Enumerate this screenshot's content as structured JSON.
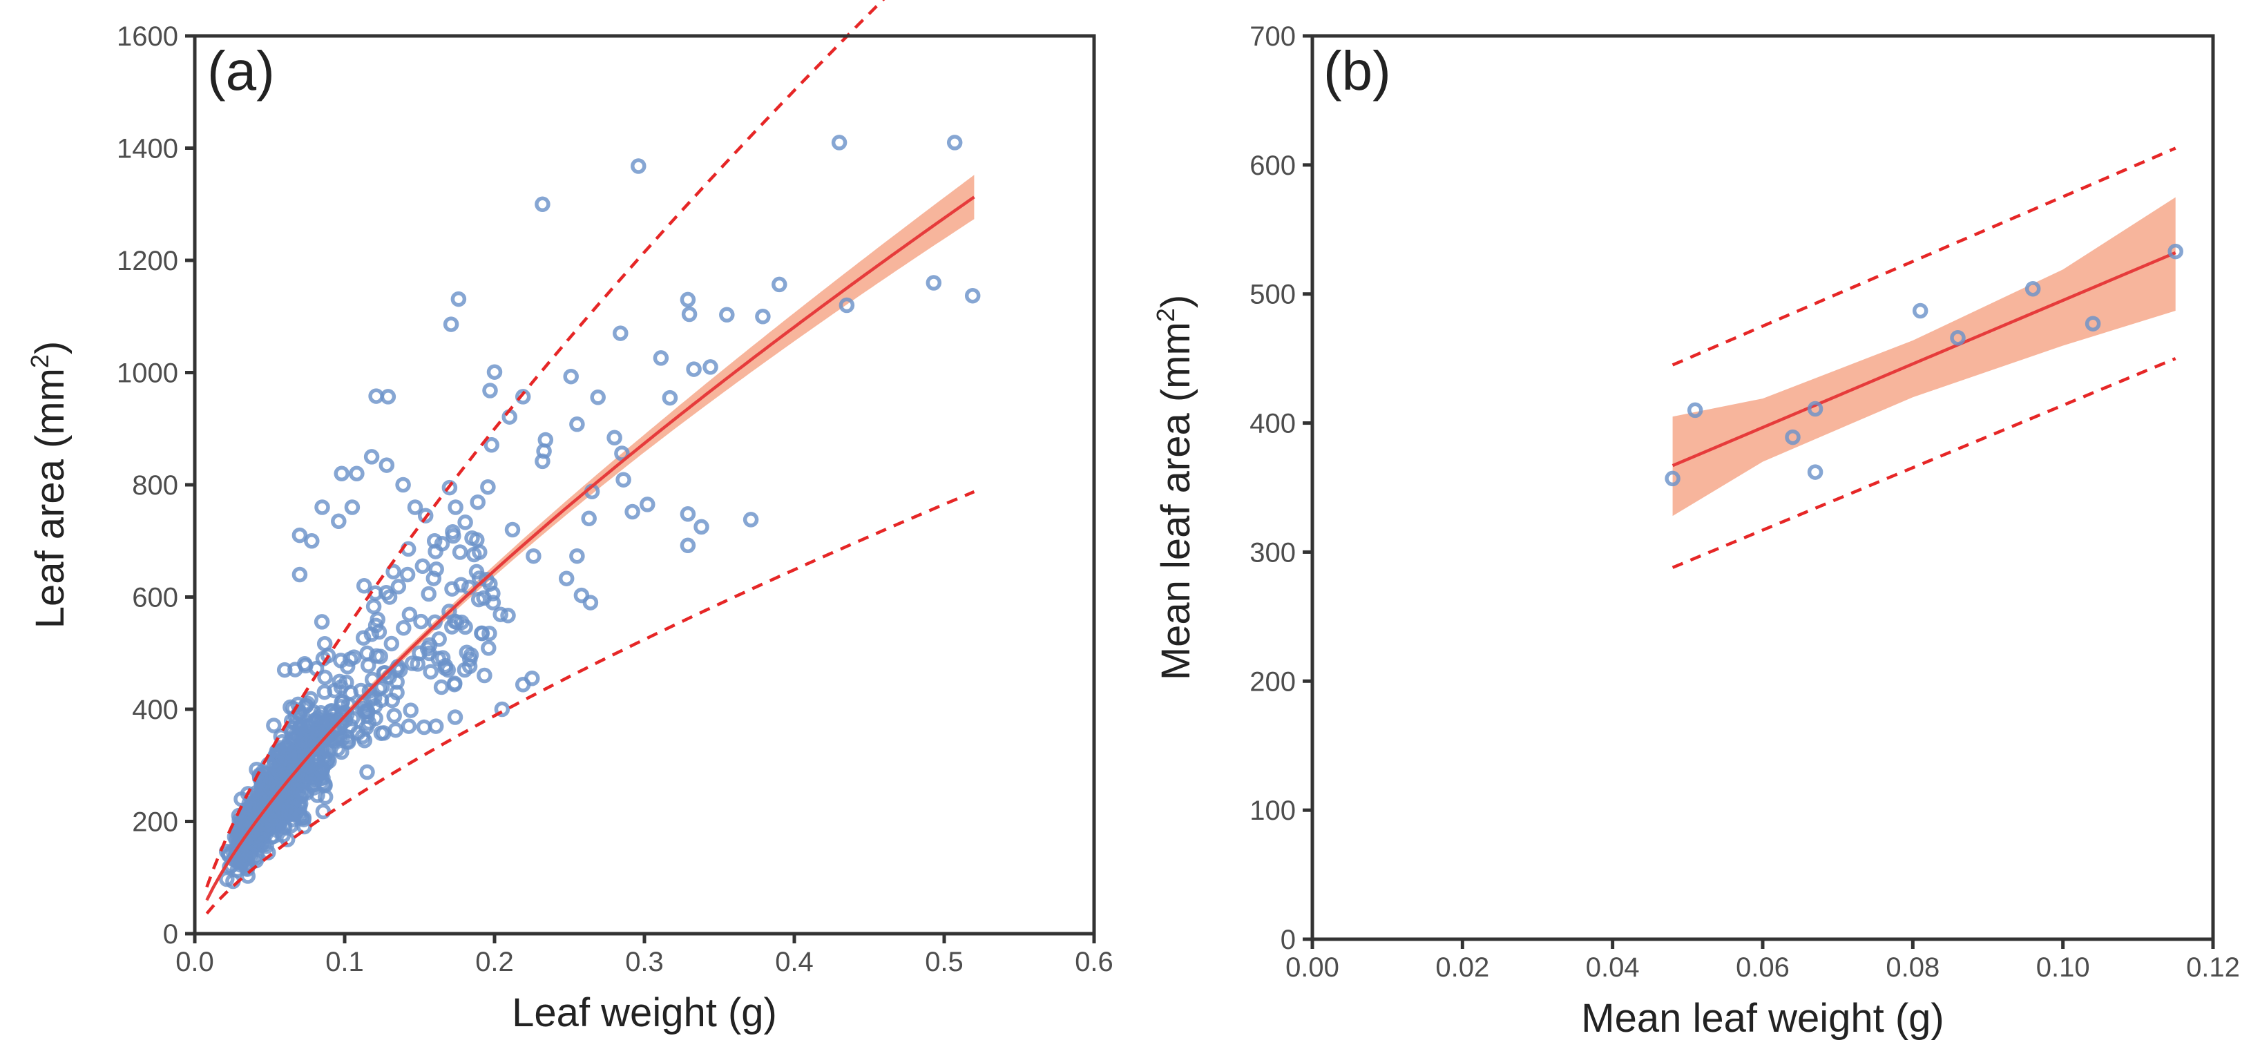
{
  "chart_data": [
    {
      "panel": "(a)",
      "type": "scatter",
      "xlabel": "Leaf weight (g)",
      "ylabel": "Leaf area (mm²)",
      "ylabel_main": "Leaf area (mm",
      "ylabel_sup": "2",
      "ylabel_end": ")",
      "xlim": [
        0.0,
        0.6
      ],
      "ylim": [
        0,
        1600
      ],
      "xticks": [
        0.0,
        0.1,
        0.2,
        0.3,
        0.4,
        0.5,
        0.6
      ],
      "xtick_labels": [
        "0.0",
        "0.1",
        "0.2",
        "0.3",
        "0.4",
        "0.5",
        "0.6"
      ],
      "yticks": [
        0,
        200,
        400,
        600,
        800,
        1000,
        1200,
        1400,
        1600
      ],
      "ytick_labels": [
        "0",
        "200",
        "400",
        "600",
        "800",
        "1000",
        "1200",
        "1400",
        "1600"
      ],
      "fit": {
        "model": "power",
        "a": 2130,
        "b": 0.74,
        "x_range": [
          0.008,
          0.52
        ]
      },
      "prediction_factor": [
        0.6,
        1.39
      ],
      "confidence_half_width_fraction": [
        0.06,
        0.025,
        0.014,
        0.018,
        0.03
      ],
      "confidence_fraction_at_x": [
        0.008,
        0.05,
        0.15,
        0.3,
        0.52
      ],
      "outliers": [
        [
          0.43,
          1410
        ],
        [
          0.507,
          1410
        ],
        [
          0.296,
          1368
        ],
        [
          0.232,
          1300
        ],
        [
          0.493,
          1160
        ],
        [
          0.519,
          1137
        ],
        [
          0.39,
          1157
        ],
        [
          0.435,
          1120
        ],
        [
          0.379,
          1100
        ],
        [
          0.355,
          1103
        ],
        [
          0.329,
          1130
        ],
        [
          0.33,
          1104
        ],
        [
          0.176,
          1131
        ],
        [
          0.171,
          1086
        ],
        [
          0.311,
          1026
        ],
        [
          0.333,
          1006
        ],
        [
          0.344,
          1010
        ],
        [
          0.317,
          955
        ],
        [
          0.284,
          1070
        ],
        [
          0.251,
          993
        ],
        [
          0.219,
          957
        ],
        [
          0.129,
          957
        ],
        [
          0.121,
          958
        ],
        [
          0.2,
          1001
        ],
        [
          0.197,
          968
        ],
        [
          0.21,
          921
        ],
        [
          0.234,
          880
        ],
        [
          0.233,
          860
        ],
        [
          0.232,
          842
        ],
        [
          0.255,
          908
        ],
        [
          0.269,
          956
        ],
        [
          0.28,
          884
        ],
        [
          0.285,
          856
        ],
        [
          0.286,
          809
        ],
        [
          0.265,
          788
        ],
        [
          0.263,
          740
        ],
        [
          0.292,
          752
        ],
        [
          0.302,
          765
        ],
        [
          0.329,
          748
        ],
        [
          0.338,
          725
        ],
        [
          0.329,
          692
        ],
        [
          0.371,
          738
        ],
        [
          0.226,
          673
        ],
        [
          0.255,
          673
        ],
        [
          0.258,
          603
        ],
        [
          0.264,
          590
        ],
        [
          0.248,
          633
        ],
        [
          0.225,
          455
        ],
        [
          0.205,
          400
        ],
        [
          0.219,
          444
        ],
        [
          0.196,
          509
        ],
        [
          0.204,
          569
        ],
        [
          0.209,
          567
        ],
        [
          0.153,
          368
        ],
        [
          0.134,
          363
        ],
        [
          0.115,
          288
        ],
        [
          0.1,
          394
        ],
        [
          0.082,
          330
        ],
        [
          0.169,
          470
        ],
        [
          0.183,
          617
        ],
        [
          0.185,
          705
        ],
        [
          0.19,
          680
        ],
        [
          0.199,
          590
        ],
        [
          0.212,
          720
        ],
        [
          0.17,
          795
        ],
        [
          0.174,
          760
        ],
        [
          0.16,
          700
        ],
        [
          0.152,
          655
        ],
        [
          0.142,
          640
        ],
        [
          0.13,
          600
        ],
        [
          0.122,
          560
        ],
        [
          0.113,
          620
        ],
        [
          0.105,
          760
        ],
        [
          0.096,
          735
        ],
        [
          0.098,
          820
        ],
        [
          0.108,
          820
        ],
        [
          0.118,
          850
        ],
        [
          0.128,
          835
        ],
        [
          0.139,
          800
        ],
        [
          0.147,
          760
        ],
        [
          0.154,
          745
        ],
        [
          0.165,
          695
        ],
        [
          0.177,
          680
        ],
        [
          0.188,
          645
        ],
        [
          0.178,
          555
        ],
        [
          0.163,
          525
        ],
        [
          0.15,
          500
        ],
        [
          0.137,
          470
        ],
        [
          0.125,
          440
        ],
        [
          0.112,
          410
        ],
        [
          0.088,
          350
        ],
        [
          0.075,
          310
        ],
        [
          0.066,
          290
        ],
        [
          0.056,
          260
        ],
        [
          0.046,
          225
        ],
        [
          0.06,
          470
        ],
        [
          0.07,
          640
        ],
        [
          0.078,
          700
        ],
        [
          0.085,
          760
        ],
        [
          0.07,
          710
        ]
      ],
      "core_cloud": {
        "count": 850,
        "x_range": [
          0.008,
          0.2
        ],
        "scatter_sd_log": 0.17
      }
    },
    {
      "panel": "(b)",
      "type": "scatter",
      "xlabel": "Mean leaf weight (g)",
      "ylabel": "Mean leaf area (mm²)",
      "ylabel_main": "Mean leaf area (mm",
      "ylabel_sup": "2",
      "ylabel_end": ")",
      "xlim": [
        0.0,
        0.12
      ],
      "ylim": [
        0,
        700
      ],
      "xticks": [
        0.0,
        0.02,
        0.04,
        0.06,
        0.08,
        0.1,
        0.12
      ],
      "xtick_labels": [
        "0.00",
        "0.02",
        "0.04",
        "0.06",
        "0.08",
        "0.10",
        "0.12"
      ],
      "yticks": [
        0,
        100,
        200,
        300,
        400,
        500,
        600,
        700
      ],
      "ytick_labels": [
        "0",
        "100",
        "200",
        "300",
        "400",
        "500",
        "600",
        "700"
      ],
      "points": [
        [
          0.048,
          357
        ],
        [
          0.051,
          410
        ],
        [
          0.064,
          389
        ],
        [
          0.067,
          411
        ],
        [
          0.067,
          362
        ],
        [
          0.081,
          487
        ],
        [
          0.086,
          466
        ],
        [
          0.096,
          504
        ],
        [
          0.104,
          477
        ],
        [
          0.115,
          533
        ]
      ],
      "fit": {
        "model": "linear",
        "x": [
          0.048,
          0.115
        ],
        "y": [
          367,
          532
        ]
      },
      "prediction_upper": {
        "x": [
          0.048,
          0.115
        ],
        "y": [
          445,
          613
        ]
      },
      "prediction_lower": {
        "x": [
          0.048,
          0.115
        ],
        "y": [
          288,
          450
        ]
      },
      "confidence_band": {
        "x": [
          0.048,
          0.06,
          0.08,
          0.1,
          0.115
        ],
        "upper": [
          405,
          419,
          464,
          519,
          575
        ],
        "lower": [
          328,
          370,
          420,
          460,
          487
        ]
      }
    }
  ]
}
